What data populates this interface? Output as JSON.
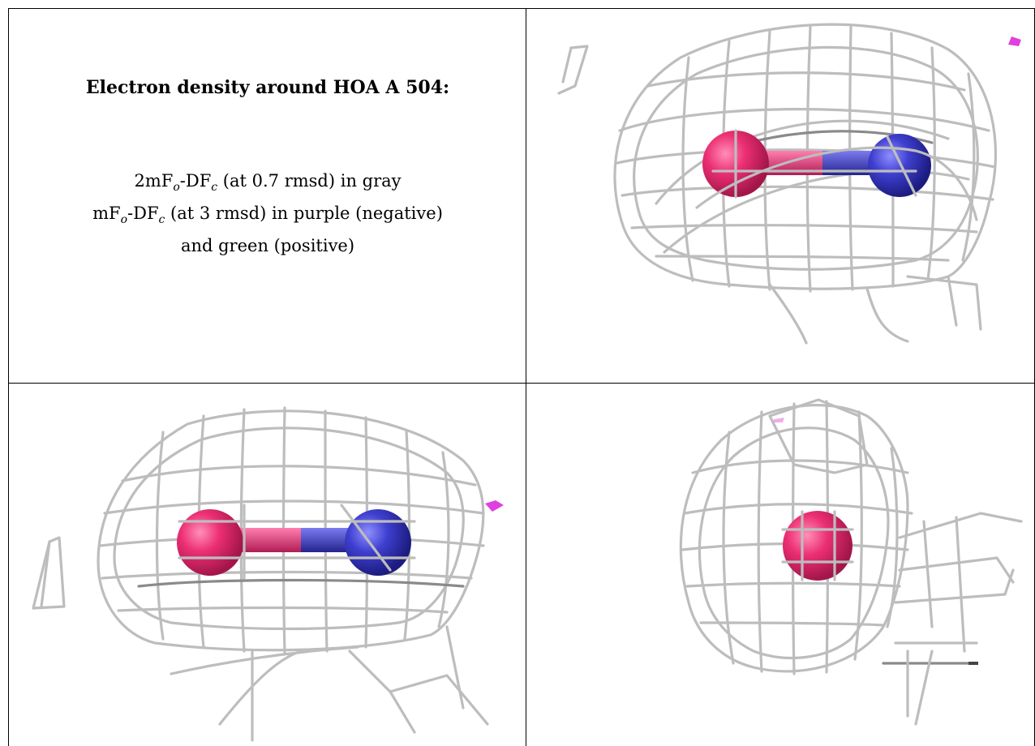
{
  "heading": "Electron density around HOA A 504:",
  "legend": {
    "line1": {
      "prefix": "2mF",
      "sub1": "o",
      "mid": "-DF",
      "sub2": "c",
      "rest": " (at 0.7 rmsd) in gray"
    },
    "line2": {
      "prefix": "mF",
      "sub1": "o",
      "mid": "-DF",
      "sub2": "c",
      "rest": " (at 3 rmsd) in purple (negative)"
    },
    "line3": "and green (positive)"
  },
  "colors": {
    "mesh_2fofc": "#c0c0c0",
    "negative_density": "#e040e0",
    "positive_density": "#00c000",
    "oxygen_atom": "#e8286e",
    "nitrogen_atom": "#3c3cc8"
  },
  "views": [
    "view-side-1",
    "view-side-2",
    "view-end-on"
  ]
}
